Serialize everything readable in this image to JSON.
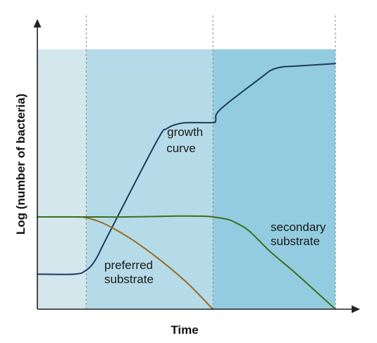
{
  "chart_data": {
    "type": "line",
    "title": "",
    "xlabel": "Time",
    "ylabel": "Log (number of bacteria)",
    "grid": false,
    "xlim": [
      0,
      100
    ],
    "ylim": [
      0,
      100
    ],
    "phases": [
      {
        "x_start": 0,
        "x_end": 16.4,
        "color": "#d3e7ec"
      },
      {
        "x_start": 16.4,
        "x_end": 58.9,
        "color": "#b6dbe8"
      },
      {
        "x_start": 58.9,
        "x_end": 100,
        "color": "#93cce0"
      }
    ],
    "phase_boundaries": [
      16.4,
      58.9,
      100
    ],
    "series": [
      {
        "color": "#1e3a5f",
        "x": [
          0,
          12.5,
          16.4,
          19.5,
          23.5,
          40,
          43.5,
          48,
          52,
          58.9,
          59.8,
          61.5,
          75.5,
          78.5,
          82,
          86,
          100
        ],
        "y": [
          13.5,
          13.5,
          15,
          19,
          28,
          64.5,
          69.5,
          71.5,
          71.8,
          71.8,
          72.5,
          77,
          89.5,
          92,
          93.2,
          93.5,
          94.5
        ]
      },
      {
        "color": "#9b6b22",
        "x": [
          0,
          13,
          16.4,
          21,
          25,
          32,
          40,
          50,
          58.9
        ],
        "y": [
          35.5,
          35.5,
          35.2,
          33.6,
          31.4,
          26.6,
          20,
          10.4,
          0
        ]
      },
      {
        "color": "#3b6e1f",
        "x": [
          0,
          16.4,
          30,
          45,
          55,
          58.9,
          64,
          66.5,
          71,
          78,
          87,
          100
        ],
        "y": [
          35.5,
          35.5,
          35.5,
          35.8,
          35.8,
          35.5,
          34.5,
          33.3,
          30.2,
          22.3,
          13.5,
          0
        ]
      }
    ],
    "annotations": [
      {
        "lines": [
          "growth",
          "curve"
        ]
      },
      {
        "lines": [
          "preferred",
          "substrate"
        ]
      },
      {
        "lines": [
          "secondary",
          "substrate"
        ]
      }
    ]
  }
}
